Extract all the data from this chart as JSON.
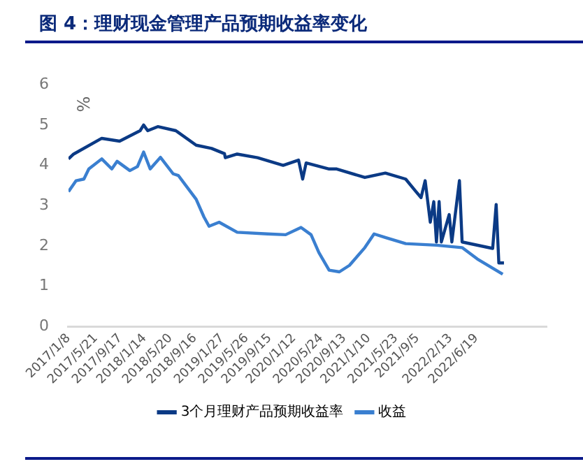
{
  "chart_data": {
    "type": "line",
    "title": "图 4：理财现金管理产品预期收益率变化",
    "ylabel": "%",
    "xlim": [
      "2017-01-08",
      "2023-05-27"
    ],
    "xticks": [
      {
        "value": "2017-01-08",
        "label": "2017/1/8"
      },
      {
        "value": "2017-05-21",
        "label": "2017/5/21"
      },
      {
        "value": "2017-09-17",
        "label": "2017/9/17"
      },
      {
        "value": "2018-01-14",
        "label": "2018/1/14"
      },
      {
        "value": "2018-05-20",
        "label": "2018/5/20"
      },
      {
        "value": "2018-09-16",
        "label": "2018/9/16"
      },
      {
        "value": "2019-01-27",
        "label": "2019/1/27"
      },
      {
        "value": "2019-05-26",
        "label": "2019/5/26"
      },
      {
        "value": "2019-09-15",
        "label": "2019/9/15"
      },
      {
        "value": "2020-01-12",
        "label": "2020/1/12"
      },
      {
        "value": "2020-05-24",
        "label": "2020/5/24"
      },
      {
        "value": "2020-09-13",
        "label": "2020/9/13"
      },
      {
        "value": "2021-01-10",
        "label": "2021/1/10"
      },
      {
        "value": "2021-05-23",
        "label": "2021/5/23"
      },
      {
        "value": "2021-09-05",
        "label": "2021/9/5"
      },
      {
        "value": "2022-02-13",
        "label": "2022/2/13"
      },
      {
        "value": "2022-06-19",
        "label": "2022/6/19"
      }
    ],
    "ylim": [
      0,
      6
    ],
    "yticks": [
      0,
      1,
      2,
      3,
      4,
      5,
      6
    ],
    "grid": false,
    "legend": "bottom",
    "marker": "none",
    "line_style": "solid",
    "series": [
      {
        "name": "3个月理财产品预期收益率",
        "color": "#0b3a85",
        "x": [
          "2017-01-08",
          "2017-02-02",
          "2017-06-19",
          "2017-09-14",
          "2017-12-23",
          "2018-01-09",
          "2018-01-29",
          "2018-03-19",
          "2018-06-15",
          "2018-09-22",
          "2018-12-06",
          "2019-02-07",
          "2019-02-11",
          "2019-04-10",
          "2019-07-18",
          "2019-11-20",
          "2020-02-03",
          "2020-02-23",
          "2020-03-11",
          "2020-07-01",
          "2020-08-07",
          "2020-12-22",
          "2021-04-01",
          "2021-07-09",
          "2021-08-28",
          "2021-09-22",
          "2021-10-12",
          "2021-11-06",
          "2021-11-23",
          "2021-12-06",
          "2021-12-19",
          "2021-12-30",
          "2022-02-06",
          "2022-02-19",
          "2022-03-28",
          "2022-04-10",
          "2022-09-06",
          "2022-09-23",
          "2022-10-06",
          "2022-10-31"
        ],
        "values": [
          4.16,
          4.28,
          4.67,
          4.6,
          4.86,
          5.0,
          4.86,
          4.96,
          4.86,
          4.5,
          4.42,
          4.29,
          4.19,
          4.28,
          4.19,
          4.0,
          4.13,
          3.66,
          4.06,
          3.91,
          3.91,
          3.7,
          3.81,
          3.66,
          3.35,
          3.2,
          3.62,
          2.59,
          3.1,
          2.1,
          3.1,
          2.1,
          2.78,
          2.1,
          3.62,
          2.1,
          1.94,
          3.03,
          1.58,
          1.58
        ]
      },
      {
        "name": "收益",
        "color": "#3a7fd0",
        "x": [
          "2017-01-08",
          "2017-02-14",
          "2017-03-24",
          "2017-04-17",
          "2017-06-19",
          "2017-08-07",
          "2017-09-02",
          "2017-11-03",
          "2017-12-10",
          "2018-01-09",
          "2018-02-10",
          "2018-04-01",
          "2018-06-02",
          "2018-06-27",
          "2018-09-22",
          "2018-10-30",
          "2018-11-24",
          "2019-01-12",
          "2019-04-10",
          "2019-09-06",
          "2019-12-02",
          "2020-02-15",
          "2020-04-04",
          "2020-05-12",
          "2020-07-01",
          "2020-08-20",
          "2020-10-08",
          "2020-12-22",
          "2021-02-05",
          "2021-04-01",
          "2021-07-09",
          "2021-12-06",
          "2022-04-10",
          "2022-06-23",
          "2022-10-25"
        ],
        "values": [
          3.35,
          3.62,
          3.66,
          3.91,
          4.16,
          3.91,
          4.1,
          3.87,
          3.97,
          4.33,
          3.91,
          4.2,
          3.79,
          3.75,
          3.16,
          2.72,
          2.49,
          2.59,
          2.34,
          2.3,
          2.28,
          2.46,
          2.28,
          1.84,
          1.4,
          1.36,
          1.52,
          1.96,
          2.3,
          2.21,
          2.06,
          2.02,
          1.96,
          1.68,
          1.3
        ]
      }
    ]
  }
}
